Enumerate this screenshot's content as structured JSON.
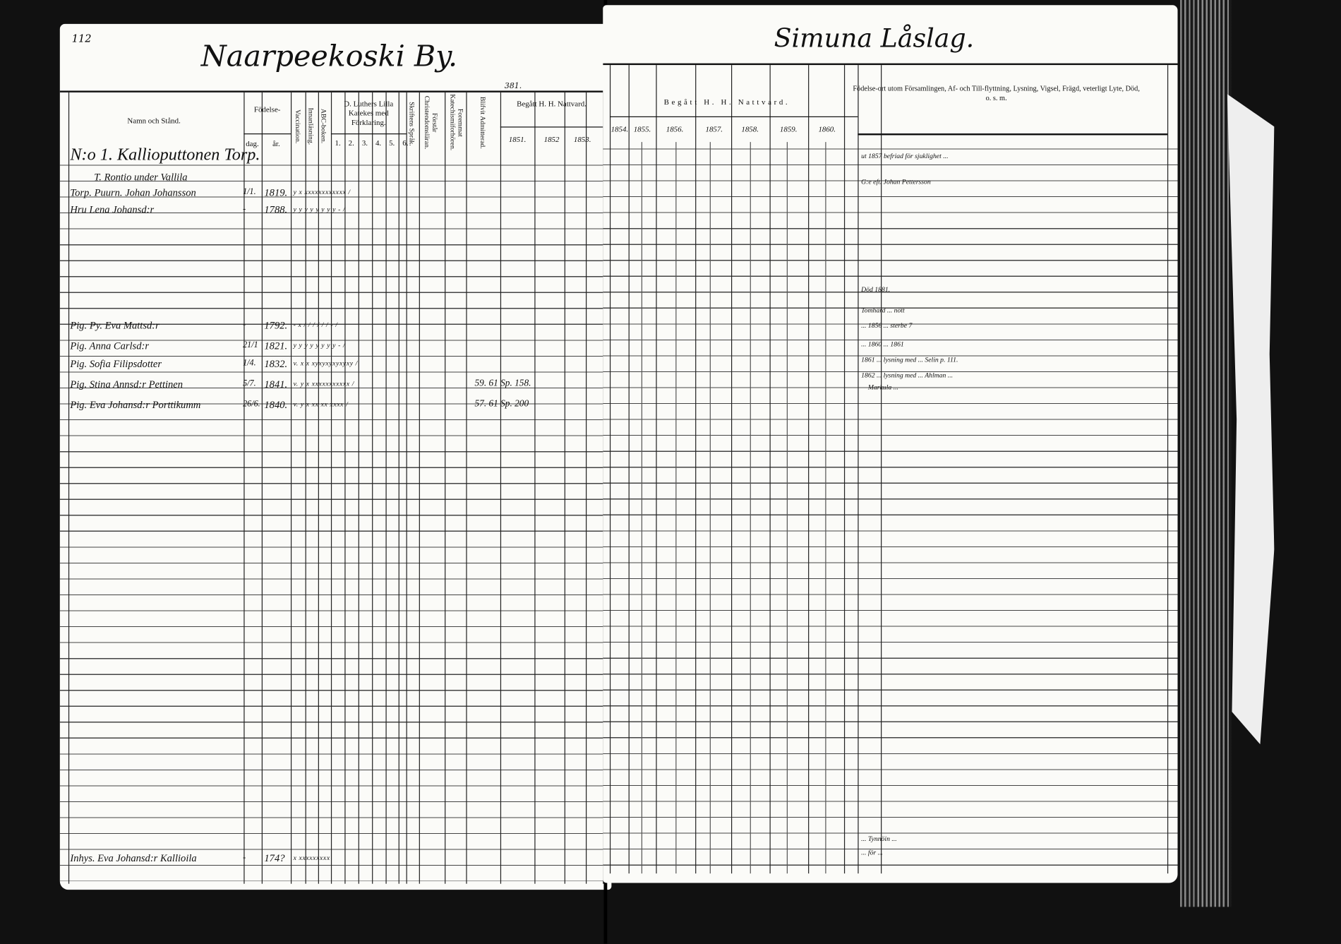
{
  "left_page": {
    "page_number": "112",
    "village_title": "Naarpeekoski By.",
    "headers": {
      "name": "Namn och Stånd.",
      "birth": "Födelse-",
      "birth_day": "dag.",
      "birth_year": "år.",
      "vaccination": "Vaccination.",
      "innanlasning": "Innanläsning.",
      "abc": "ABC-boken.",
      "luther": "D. Luthers Lilla Katekes med Förklaring.",
      "luther_parts": [
        "1.",
        "2.",
        "3.",
        "4.",
        "5.",
        "6."
      ],
      "skriftens": "Skriftens Språk.",
      "forstar": "Förstår Christendomsläran.",
      "foremmat": "Foremmat Katechismiforhören.",
      "blifvit": "Blifvit Admitterad.",
      "annot": "381.",
      "nattvard": "Begått H. H. Nattvard.",
      "years": [
        "1851.",
        "1852",
        "1853."
      ]
    },
    "records": [
      {
        "name": "N:o 1. Kallioputtonen Torp.",
        "day": "",
        "year": "",
        "marks": "",
        "extra": ""
      },
      {
        "name": "T. Rontio under Vallila",
        "day": "",
        "year": "",
        "marks": "",
        "extra": ""
      },
      {
        "name": "Torp. Puurn. Johan Johansson",
        "day": "1/1.",
        "year": "1819.",
        "marks": "y x xxxxxxxxxxxx  /",
        "extra": ""
      },
      {
        "name": "Hru Lena Johansd:r",
        "day": "-",
        "year": "1788.",
        "marks": "y y y y y y y y -  /",
        "extra": ""
      },
      {
        "name": "Pig. Py. Eva Mattsd:r",
        "day": "-",
        "year": "1792.",
        "marks": "- x / / / / / / -  /",
        "extra": ""
      },
      {
        "name": "Pig. Anna Carlsd:r",
        "day": "21/1",
        "year": "1821.",
        "marks": "y y y y y y y y -  /",
        "extra": ""
      },
      {
        "name": "Pig. Sofia Filipsdotter",
        "day": "1/4.",
        "year": "1832.",
        "marks": "v. x x xyxyxyxyxyxy  /",
        "extra": ""
      },
      {
        "name": "Pig. Stina Annsd:r Pettinen",
        "day": "5/7.",
        "year": "1841.",
        "marks": "v. y x xxxxxxxxxxx  /",
        "extra": "59.   61 Sp. 158."
      },
      {
        "name": "Pig. Eva Johansd:r Porttikumm",
        "day": "26/6.",
        "year": "1840.",
        "marks": "v. y x xx xx xxxx  /",
        "extra": "57.   61 Sp. 200"
      },
      {
        "name": "Inhys. Eva Johansd:r Kallioila",
        "day": "-",
        "year": "174?",
        "marks": "x  xxxxxxxxx",
        "extra": ""
      }
    ]
  },
  "right_page": {
    "farm_title": "Simuna Låslag.",
    "nattvard": "Begått H. H. Nattvard.",
    "years": [
      "1854.",
      "1855.",
      "1856.",
      "1857.",
      "1858.",
      "1859.",
      "1860."
    ],
    "remarks_header": "Födelse-ort utom Församlingen, Af- och Till-flyttning, Lysning, Vigsel, Frägd, veterligt Lyte, Död, o. s. m.",
    "remarks": [
      "ut 1857 befriad för sjuklighet ...",
      "G:e eft. Johan Pettersson",
      "Död 1881.",
      "Tomhärd ... nött",
      "... 1856 ... sterbe 7",
      "... 1860 ... 1861",
      "1861 ... lysning med ... Selin p. 111.",
      "1862 ... lysning med ... Ahlman ...",
      "Markula ...",
      "... Tynnöin ...",
      "... för ... "
    ]
  },
  "colors": {
    "background": "#111111",
    "paper": "#fbfbf8",
    "ink": "#111111"
  }
}
